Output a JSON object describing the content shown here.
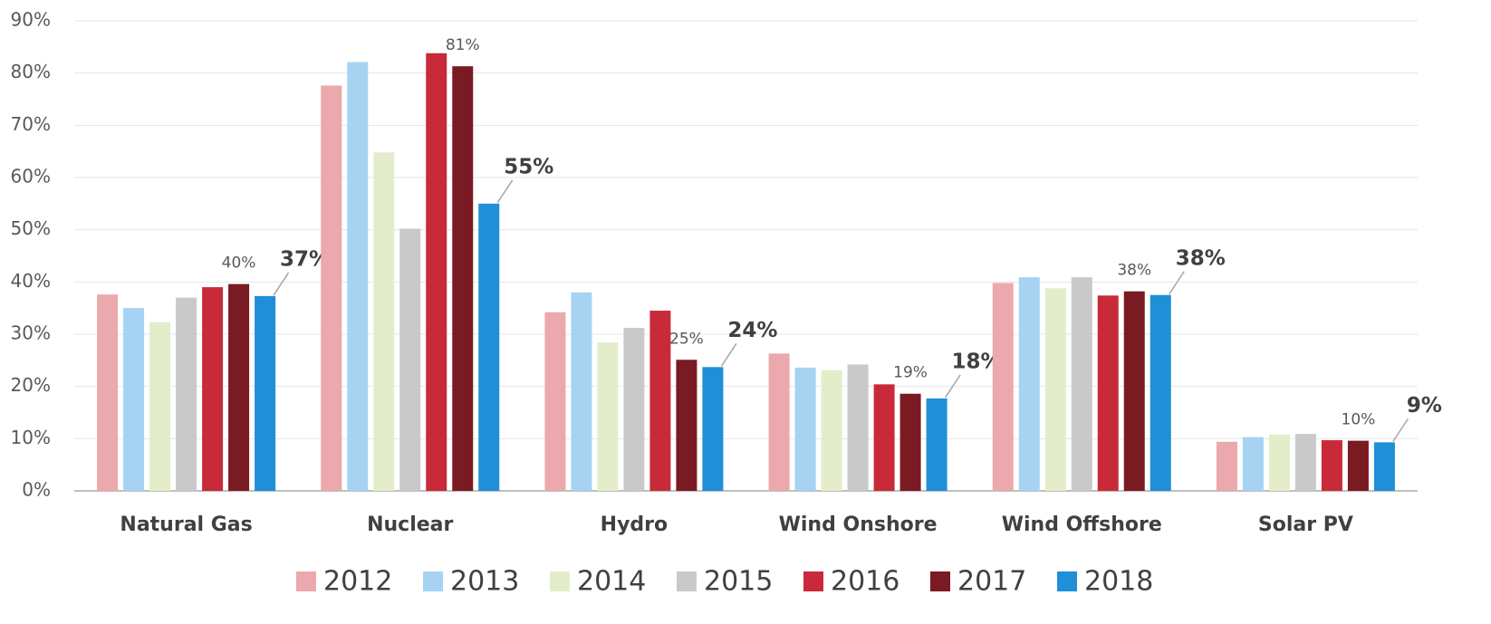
{
  "chart_data": {
    "type": "bar",
    "categories": [
      "Natural Gas",
      "Nuclear",
      "Hydro",
      "Wind Onshore",
      "Wind Offshore",
      "Solar PV"
    ],
    "series": [
      {
        "name": "2012",
        "color": "#eba8ad",
        "values": [
          37.6,
          77.6,
          34.2,
          26.3,
          39.8,
          9.4
        ]
      },
      {
        "name": "2013",
        "color": "#a6d3f2",
        "values": [
          35,
          82.1,
          38,
          23.6,
          40.9,
          10.3
        ]
      },
      {
        "name": "2014",
        "color": "#e4edca",
        "values": [
          32.3,
          64.8,
          28.4,
          23.1,
          38.8,
          10.8
        ]
      },
      {
        "name": "2015",
        "color": "#c9c9c9",
        "values": [
          37,
          50.2,
          31.2,
          24.2,
          40.9,
          10.9
        ]
      },
      {
        "name": "2016",
        "color": "#c92a39",
        "values": [
          39,
          83.8,
          34.5,
          20.4,
          37.4,
          9.7
        ]
      },
      {
        "name": "2017",
        "color": "#7a1a23",
        "values": [
          39.6,
          81.3,
          25.1,
          18.6,
          38.2,
          9.6
        ],
        "value_labels": [
          "40%",
          "81%",
          "25%",
          "19%",
          "38%",
          "10%"
        ]
      },
      {
        "name": "2018",
        "color": "#1f8fd8",
        "values": [
          37.3,
          55,
          23.7,
          17.7,
          37.5,
          9.3
        ],
        "value_labels": [
          "37%",
          "55%",
          "24%",
          "18%",
          "38%",
          "9%"
        ]
      }
    ],
    "ylim": [
      0,
      90
    ],
    "yticks": [
      {
        "value": 0,
        "label": "0%"
      },
      {
        "value": 10,
        "label": "10%"
      },
      {
        "value": 20,
        "label": "20%"
      },
      {
        "value": 30,
        "label": "30%"
      },
      {
        "value": 40,
        "label": "40%"
      },
      {
        "value": 50,
        "label": "50%"
      },
      {
        "value": 60,
        "label": "60%"
      },
      {
        "value": 70,
        "label": "70%"
      },
      {
        "value": 80,
        "label": "80%"
      },
      {
        "value": 90,
        "label": "90%"
      }
    ],
    "grid": true,
    "legend": "bottom"
  }
}
